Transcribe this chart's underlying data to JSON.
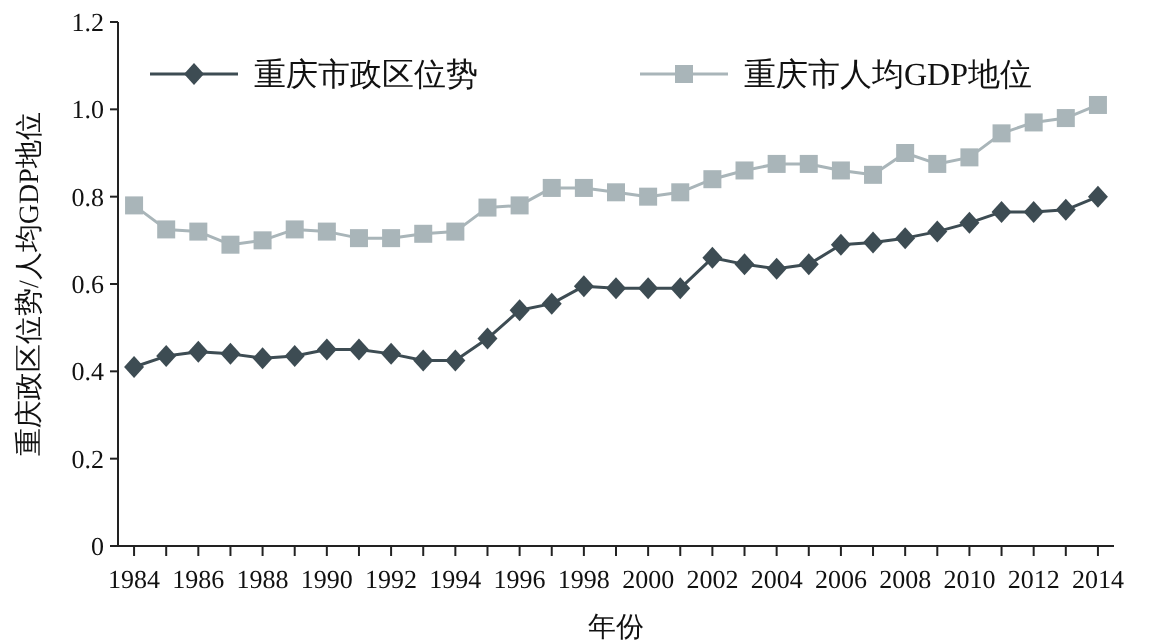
{
  "chart_data": {
    "type": "line",
    "xlabel": "年份",
    "ylabel": "重庆政区位势/人均GDP地位",
    "x": [
      1984,
      1985,
      1986,
      1987,
      1988,
      1989,
      1990,
      1991,
      1992,
      1993,
      1994,
      1995,
      1996,
      1997,
      1998,
      1999,
      2000,
      2001,
      2002,
      2003,
      2004,
      2005,
      2006,
      2007,
      2008,
      2009,
      2010,
      2011,
      2012,
      2013,
      2014
    ],
    "series": [
      {
        "name": "重庆市政区位势",
        "color": "#3d4c53",
        "marker": "diamond",
        "values": [
          0.41,
          0.435,
          0.445,
          0.44,
          0.43,
          0.435,
          0.45,
          0.45,
          0.44,
          0.425,
          0.425,
          0.475,
          0.54,
          0.555,
          0.595,
          0.59,
          0.59,
          0.59,
          0.66,
          0.645,
          0.635,
          0.645,
          0.69,
          0.695,
          0.705,
          0.72,
          0.74,
          0.765,
          0.765,
          0.77,
          0.8
        ]
      },
      {
        "name": "重庆市人均GDP地位",
        "color": "#a9b5b9",
        "marker": "square",
        "values": [
          0.78,
          0.725,
          0.72,
          0.69,
          0.7,
          0.725,
          0.72,
          0.705,
          0.705,
          0.715,
          0.72,
          0.775,
          0.78,
          0.82,
          0.82,
          0.81,
          0.8,
          0.81,
          0.84,
          0.86,
          0.875,
          0.875,
          0.86,
          0.85,
          0.9,
          0.875,
          0.89,
          0.945,
          0.97,
          0.98,
          1.01
        ]
      }
    ],
    "xlim": [
      1983.5,
      2014.5
    ],
    "xticks": [
      1984,
      {
        "value": 1985,
        "label": null
      },
      1986,
      {
        "value": 1987,
        "label": null
      },
      1988,
      {
        "value": 1989,
        "label": null
      },
      1990,
      {
        "value": 1991,
        "label": null
      },
      1992,
      {
        "value": 1993,
        "label": null
      },
      1994,
      {
        "value": 1995,
        "label": null
      },
      1996,
      {
        "value": 1997,
        "label": null
      },
      1998,
      {
        "value": 1999,
        "label": null
      },
      2000,
      {
        "value": 2001,
        "label": null
      },
      2002,
      {
        "value": 2003,
        "label": null
      },
      2004,
      {
        "value": 2005,
        "label": null
      },
      2006,
      {
        "value": 2007,
        "label": null
      },
      2008,
      {
        "value": 2009,
        "label": null
      },
      2010,
      {
        "value": 2011,
        "label": null
      },
      2012,
      {
        "value": 2013,
        "label": null
      },
      2014
    ],
    "ylim": [
      0,
      1.2
    ],
    "yticks": [
      0,
      0.2,
      0.4,
      0.6,
      0.8,
      {
        "value": 1,
        "label": "1.0"
      },
      1.2
    ],
    "legend": "top left",
    "grid": false,
    "line_style": "solid"
  }
}
